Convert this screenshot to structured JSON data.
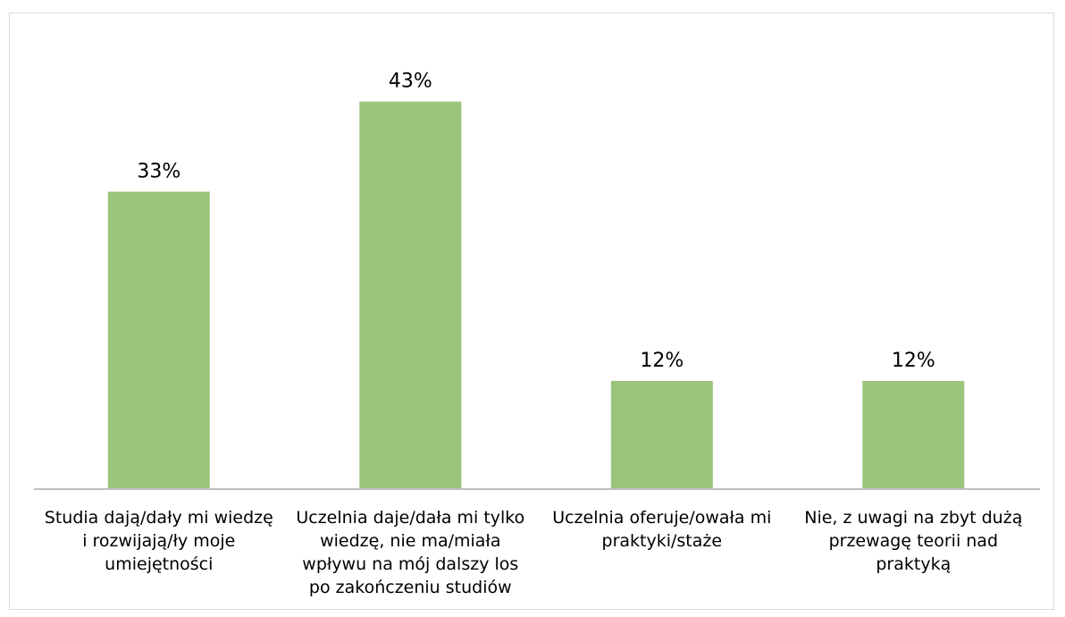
{
  "chart_data": {
    "type": "bar",
    "categories": [
      "Studia dają/dały mi wiedzę\ni rozwijają/ły moje\numiejętności",
      "Uczelnia daje/dała mi tylko\nwiedzę, nie ma/miała\nwpływu na mój dalszy los\npo zakończeniu studiów",
      "Uczelnia oferuje/owała mi\npraktyki/staże",
      "Nie, z uwagi na zbyt dużą\nprzewagę teorii nad\npraktyką"
    ],
    "values": [
      33,
      43,
      12,
      12
    ],
    "data_labels": [
      "33%",
      "43%",
      "12%",
      "12%"
    ],
    "title": "",
    "xlabel": "",
    "ylabel": "",
    "ylim": [
      0,
      50
    ],
    "grid": false,
    "legend": "none",
    "colors": {
      "bar": "#9bc57c",
      "axis": "#bfbfbf",
      "frame": "#d9d9d9",
      "text": "#000000"
    }
  }
}
